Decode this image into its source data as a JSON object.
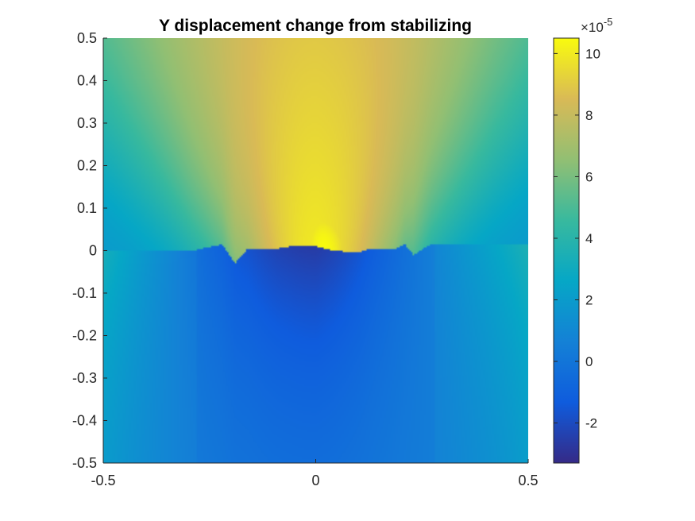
{
  "chart_data": {
    "type": "heatmap",
    "title": "Y displacement change from stabilizing",
    "xlabel": "",
    "ylabel": "",
    "xlim": [
      -0.5,
      0.5
    ],
    "ylim": [
      -0.5,
      0.5
    ],
    "x_ticks": [
      "-0.5",
      "0",
      "0.5"
    ],
    "y_ticks": [
      "0.5",
      "0.4",
      "0.3",
      "0.2",
      "0.1",
      "0",
      "-0.1",
      "-0.2",
      "-0.3",
      "-0.4",
      "-0.5"
    ],
    "colorbar": {
      "exponent_label": "×10",
      "exponent_power": "-5",
      "range": [
        -3.3,
        10.5
      ],
      "ticks": [
        "10",
        "8",
        "6",
        "4",
        "2",
        "0",
        "-2"
      ],
      "tick_values": [
        10,
        8,
        6,
        4,
        2,
        0,
        -2
      ],
      "colormap": "parula"
    },
    "interface_y": [
      {
        "x": -0.29,
        "y": 0.0
      },
      {
        "x": -0.22,
        "y": 0.015
      },
      {
        "x": -0.19,
        "y": -0.03
      },
      {
        "x": -0.16,
        "y": 0.005
      },
      {
        "x": -0.09,
        "y": 0.005
      },
      {
        "x": -0.06,
        "y": 0.01
      },
      {
        "x": 0.0,
        "y": 0.01
      },
      {
        "x": 0.04,
        "y": 0.0
      },
      {
        "x": 0.1,
        "y": -0.005
      },
      {
        "x": 0.13,
        "y": 0.005
      },
      {
        "x": 0.19,
        "y": 0.005
      },
      {
        "x": 0.21,
        "y": 0.015
      },
      {
        "x": 0.23,
        "y": -0.01
      },
      {
        "x": 0.27,
        "y": 0.015
      }
    ],
    "field_summary": {
      "upper_max": 10.5,
      "upper_max_location": {
        "x": 0.02,
        "y": 0.02
      },
      "upper_top_edge_center": 8.0,
      "upper_side_edges": 3.5,
      "lower_min": -3.2,
      "lower_min_location": {
        "x": -0.05,
        "y": -0.03
      },
      "lower_bottom_edge": 0.5,
      "lower_side_edges": 2.5
    }
  }
}
